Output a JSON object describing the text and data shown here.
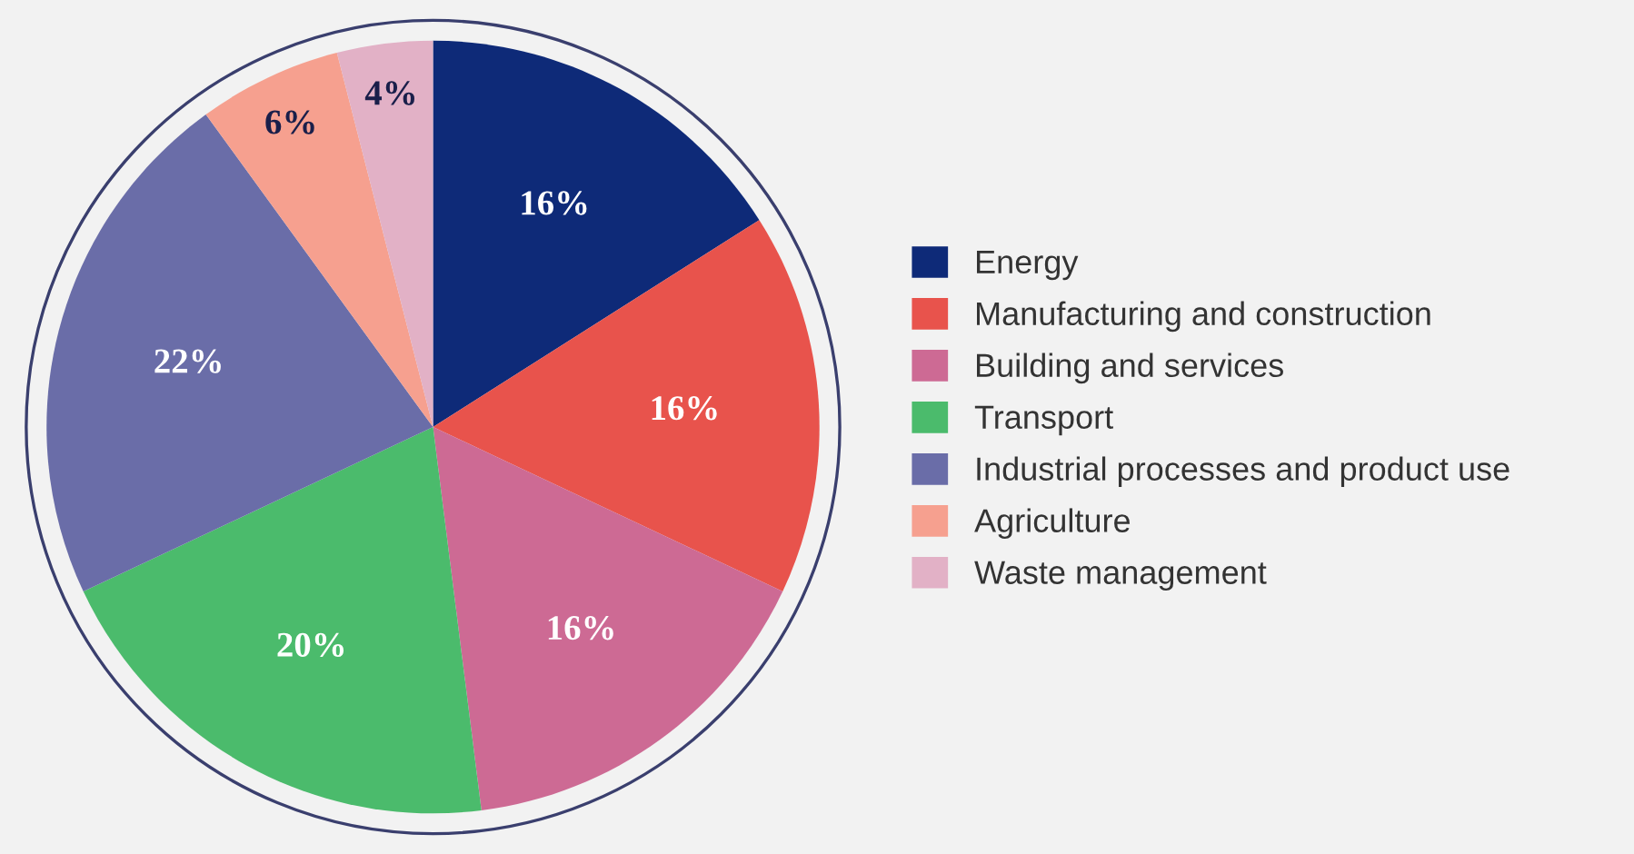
{
  "chart_data": {
    "type": "pie",
    "categories": [
      "Energy",
      "Manufacturing and construction",
      "Building and services",
      "Transport",
      "Industrial processes and product use",
      "Agriculture",
      "Waste management"
    ],
    "values": [
      16,
      16,
      16,
      20,
      22,
      6,
      4
    ],
    "colors": [
      "#0e2a78",
      "#e8534c",
      "#cd6a94",
      "#4bbb6c",
      "#6a6da8",
      "#f6a08f",
      "#e2b1c6"
    ],
    "value_labels": [
      "16%",
      "16%",
      "16%",
      "20%",
      "22%",
      "6%",
      "4%"
    ],
    "legend": "right"
  }
}
